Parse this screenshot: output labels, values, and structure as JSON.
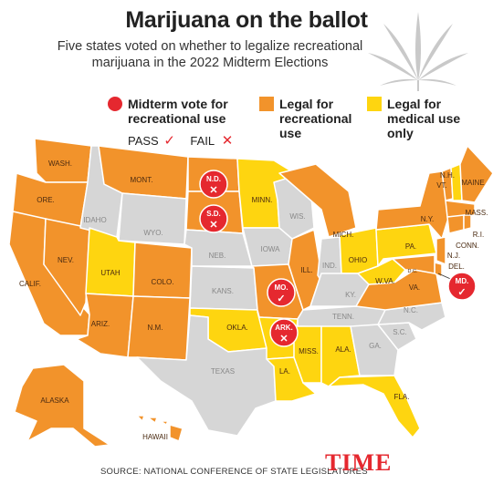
{
  "header": {
    "title": "Marijuana on the ballot",
    "subtitle": "Five states voted on whether to legalize recreational marijuana in the 2022 Midterm Elections"
  },
  "legend": {
    "vote_label": "Midterm vote for recreational use",
    "recreational_label": "Legal for recreational use",
    "medical_label": "Legal for medical use only",
    "pass_label": "PASS",
    "fail_label": "FAIL"
  },
  "colors": {
    "recreational": "#f2932b",
    "medical": "#fed510",
    "none": "#d6d6d6",
    "vote": "#e5282f"
  },
  "states": {
    "wash": "WASH.",
    "ore": "ORE.",
    "calif": "CALIF.",
    "nev": "NEV.",
    "idaho": "IDAHO",
    "mont": "MONT.",
    "wyo": "WYO.",
    "utah": "UTAH",
    "colo": "COLO.",
    "ariz": "ARIZ.",
    "nm": "N.M.",
    "nd": "N.D.",
    "sd": "S.D.",
    "neb": "NEB.",
    "kans": "KANS.",
    "okla": "OKLA.",
    "texas": "TEXAS",
    "minn": "MINN.",
    "iowa": "IOWA",
    "mo": "MO.",
    "ark": "ARK.",
    "la": "LA.",
    "wis": "WIS.",
    "ill": "ILL.",
    "mich": "MICH.",
    "ind": "IND.",
    "ohio": "OHIO",
    "ky": "KY.",
    "tenn": "TENN.",
    "miss": "MISS.",
    "ala": "ALA.",
    "ga": "GA.",
    "fla": "FLA.",
    "sc": "S.C.",
    "nc": "N.C.",
    "va": "VA.",
    "wva": "W.VA.",
    "pa": "PA.",
    "ny": "N.Y.",
    "nh": "N.H.",
    "vt": "VT.",
    "maine": "MAINE",
    "mass": "MASS.",
    "ri": "R.I.",
    "conn": "CONN.",
    "nj": "N.J.",
    "del": "DEL.",
    "md": "MD.",
    "dc": "D.C.",
    "alaska": "ALASKA",
    "hawaii": "HAWAII"
  },
  "votes": [
    {
      "state": "N.D.",
      "result": "FAIL"
    },
    {
      "state": "S.D.",
      "result": "FAIL"
    },
    {
      "state": "MO.",
      "result": "PASS"
    },
    {
      "state": "ARK.",
      "result": "FAIL"
    },
    {
      "state": "MD.",
      "result": "PASS"
    }
  ],
  "footer": {
    "source": "SOURCE: NATIONAL CONFERENCE OF STATE LEGISLATURES",
    "brand": "TIME"
  }
}
